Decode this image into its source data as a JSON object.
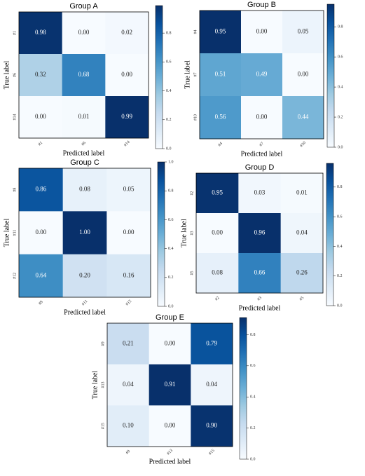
{
  "chart_data": [
    {
      "type": "heatmap",
      "title": "Group A",
      "x_label": "Predicted label",
      "y_label": "True label",
      "x_categories": [
        "#1",
        "#6",
        "#14"
      ],
      "y_categories": [
        "#1",
        "#6",
        "#14"
      ],
      "values": [
        [
          0.98,
          0,
          0.02
        ],
        [
          0.32,
          0.68,
          0
        ],
        [
          0,
          0.01,
          0.99
        ]
      ],
      "value_labels": [
        [
          "0.98",
          "0.00",
          "0.02"
        ],
        [
          "0.32",
          "0.68",
          "0.00"
        ],
        [
          "0.00",
          "0.01",
          "0.99"
        ]
      ],
      "colormap": "Blues",
      "clim": [
        0,
        0.99
      ],
      "cticks": [
        {
          "value": 0,
          "label": "0.0"
        },
        0.2,
        0.4,
        0.6,
        0.8
      ]
    },
    {
      "type": "heatmap",
      "title": "Group B",
      "x_label": "Predicted label",
      "y_label": "True label",
      "x_categories": [
        "#4",
        "#7",
        "#10"
      ],
      "y_categories": [
        "#4",
        "#7",
        "#10"
      ],
      "values": [
        [
          0.95,
          0,
          0.05
        ],
        [
          0.51,
          0.49,
          0
        ],
        [
          0.56,
          0,
          0.44
        ]
      ],
      "value_labels": [
        [
          "0.95",
          "0.00",
          "0.05"
        ],
        [
          "0.51",
          "0.49",
          "0.00"
        ],
        [
          "0.56",
          "0.00",
          "0.44"
        ]
      ],
      "colormap": "Blues",
      "clim": [
        0,
        0.95
      ],
      "cticks": [
        {
          "value": 0,
          "label": "0.0"
        },
        0.2,
        0.4,
        0.6,
        0.8
      ]
    },
    {
      "type": "heatmap",
      "title": "Group C",
      "x_label": "Predicted label",
      "y_label": "True label",
      "x_categories": [
        "#8",
        "#11",
        "#12"
      ],
      "y_categories": [
        "#8",
        "#11",
        "#12"
      ],
      "values": [
        [
          0.86,
          0.08,
          0.05
        ],
        [
          0,
          1.0,
          0
        ],
        [
          0.64,
          0.2,
          0.16
        ]
      ],
      "value_labels": [
        [
          "0.86",
          "0.08",
          "0.05"
        ],
        [
          "0.00",
          "1.00",
          "0.00"
        ],
        [
          "0.64",
          "0.20",
          "0.16"
        ]
      ],
      "colormap": "Blues",
      "clim": [
        0,
        1
      ],
      "cticks": [
        {
          "value": 0,
          "label": "0.0"
        },
        0.2,
        0.4,
        0.6,
        0.8,
        {
          "value": 1,
          "label": "1.0"
        }
      ]
    },
    {
      "type": "heatmap",
      "title": "Group D",
      "x_label": "Predicted label",
      "y_label": "True label",
      "x_categories": [
        "#2",
        "#3",
        "#5"
      ],
      "y_categories": [
        "#2",
        "#3",
        "#5"
      ],
      "values": [
        [
          0.95,
          0.03,
          0.01
        ],
        [
          0,
          0.96,
          0.04
        ],
        [
          0.08,
          0.66,
          0.26
        ]
      ],
      "value_labels": [
        [
          "0.95",
          "0.03",
          "0.01"
        ],
        [
          "0.00",
          "0.96",
          "0.04"
        ],
        [
          "0.08",
          "0.66",
          "0.26"
        ]
      ],
      "colormap": "Blues",
      "clim": [
        0,
        0.96
      ],
      "cticks": [
        {
          "value": 0,
          "label": "0.0"
        },
        0.2,
        0.4,
        0.6,
        0.8
      ]
    },
    {
      "type": "heatmap",
      "title": "Group E",
      "x_label": "Predicted label",
      "y_label": "True label",
      "x_categories": [
        "#9",
        "#13",
        "#15"
      ],
      "y_categories": [
        "#9",
        "#13",
        "#15"
      ],
      "values": [
        [
          0.21,
          0,
          0.79
        ],
        [
          0.04,
          0.91,
          0.04
        ],
        [
          0.1,
          0,
          0.9
        ]
      ],
      "value_labels": [
        [
          "0.21",
          "0.00",
          "0.79"
        ],
        [
          "0.04",
          "0.91",
          "0.04"
        ],
        [
          "0.10",
          "0.00",
          "0.90"
        ]
      ],
      "colormap": "Blues",
      "clim": [
        0,
        0.91
      ],
      "cticks": [
        {
          "value": 0,
          "label": "0.0"
        },
        0.2,
        0.4,
        0.6,
        0.8
      ]
    }
  ]
}
